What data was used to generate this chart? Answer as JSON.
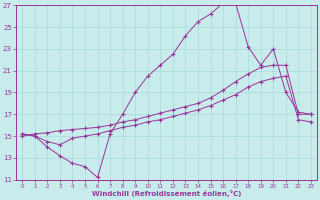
{
  "xlabel": "Windchill (Refroidissement éolien,°C)",
  "background_color": "#c8ecec",
  "grid_color": "#a8d8d8",
  "line_color": "#993399",
  "xlim": [
    -0.5,
    23.5
  ],
  "ylim": [
    11,
    27
  ],
  "xticks": [
    0,
    1,
    2,
    3,
    4,
    5,
    6,
    7,
    8,
    9,
    10,
    11,
    12,
    13,
    14,
    15,
    16,
    17,
    18,
    19,
    20,
    21,
    22,
    23
  ],
  "yticks": [
    11,
    13,
    15,
    17,
    19,
    21,
    23,
    25,
    27
  ],
  "series1_x": [
    0,
    1,
    2,
    3,
    4,
    5,
    6,
    7,
    8,
    9,
    10,
    11,
    12,
    13,
    14,
    15,
    16,
    17,
    18,
    19,
    20,
    21,
    22,
    23
  ],
  "series1_y": [
    15.2,
    15.0,
    14.0,
    13.2,
    12.5,
    12.2,
    11.2,
    15.2,
    17.0,
    19.0,
    20.5,
    21.5,
    22.5,
    24.2,
    25.5,
    26.2,
    27.2,
    27.2,
    23.2,
    21.5,
    23.0,
    19.0,
    17.2,
    17.0
  ],
  "series2_x": [
    0,
    1,
    2,
    3,
    4,
    5,
    6,
    7,
    8,
    9,
    10,
    11,
    12,
    13,
    14,
    15,
    16,
    17,
    18,
    19,
    20,
    21,
    22,
    23
  ],
  "series2_y": [
    15.0,
    15.2,
    15.3,
    15.5,
    15.6,
    15.7,
    15.8,
    16.0,
    16.3,
    16.5,
    16.8,
    17.1,
    17.4,
    17.7,
    18.0,
    18.5,
    19.2,
    20.0,
    20.7,
    21.3,
    21.5,
    21.5,
    17.0,
    17.0
  ],
  "series3_x": [
    0,
    1,
    2,
    3,
    4,
    5,
    6,
    7,
    8,
    9,
    10,
    11,
    12,
    13,
    14,
    15,
    16,
    17,
    18,
    19,
    20,
    21,
    22,
    23
  ],
  "series3_y": [
    15.2,
    15.0,
    14.5,
    14.2,
    14.8,
    15.0,
    15.2,
    15.5,
    15.8,
    16.0,
    16.3,
    16.5,
    16.8,
    17.1,
    17.4,
    17.8,
    18.3,
    18.8,
    19.5,
    20.0,
    20.3,
    20.5,
    16.5,
    16.3
  ]
}
